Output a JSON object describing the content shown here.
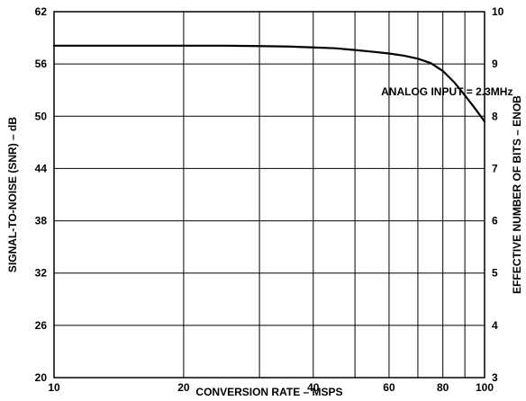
{
  "chart_data": {
    "type": "line",
    "title": "",
    "xlabel": "CONVERSION RATE – MSPS",
    "ylabel": "SIGNAL-TO-NOISE (SNR) – dB",
    "y2label": "EFFECTIVE NUMBER OF BITS – ENOB",
    "xscale": "log",
    "xlim": [
      10,
      100
    ],
    "ylim": [
      20,
      62
    ],
    "y2lim": [
      3,
      10
    ],
    "xticks": [
      10,
      20,
      40,
      60,
      80,
      100
    ],
    "xtick_labels": [
      "10",
      "20",
      "40",
      "60",
      "80",
      "100"
    ],
    "x_gridlines": [
      20,
      30,
      40,
      50,
      60,
      70,
      80,
      90
    ],
    "yticks": [
      20,
      26,
      32,
      38,
      44,
      50,
      56,
      62
    ],
    "ytick_labels": [
      "20",
      "26",
      "32",
      "38",
      "44",
      "50",
      "56",
      "62"
    ],
    "y2ticks": [
      3,
      4,
      5,
      6,
      7,
      8,
      9,
      10
    ],
    "y2tick_labels": [
      "3",
      "4",
      "5",
      "6",
      "7",
      "8",
      "9",
      "10"
    ],
    "grid": true,
    "annotation": "ANALOG INPUT = 2.3MHz",
    "series": [
      {
        "x": [
          10,
          15,
          20,
          25,
          30,
          35,
          40,
          45,
          50,
          55,
          60,
          65,
          70,
          75,
          80,
          85,
          90,
          95,
          100
        ],
        "y": [
          58.1,
          58.1,
          58.1,
          58.1,
          58.05,
          58.0,
          57.9,
          57.8,
          57.6,
          57.4,
          57.2,
          56.95,
          56.6,
          56.1,
          55.2,
          53.9,
          52.4,
          50.9,
          49.4
        ]
      }
    ]
  }
}
